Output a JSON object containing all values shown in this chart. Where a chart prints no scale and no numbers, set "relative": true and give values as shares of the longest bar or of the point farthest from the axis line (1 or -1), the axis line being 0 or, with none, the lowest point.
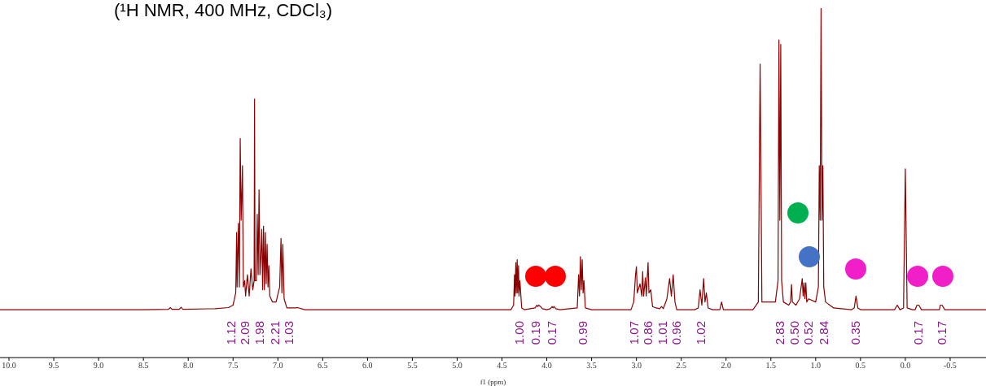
{
  "chart_data": {
    "type": "line",
    "title": "(¹H NMR, 400 MHz, CDCl₃)",
    "xlabel": "f1 (ppm)",
    "relative": true,
    "color": "#8b0000",
    "line_style": "solid",
    "xlim": [
      10.1,
      -0.9
    ],
    "xticks": [
      {
        "value": 10,
        "label": "10.0"
      },
      9.5,
      {
        "value": 9,
        "label": "9.0"
      },
      8.5,
      {
        "value": 8,
        "label": "8.0"
      },
      7.5,
      {
        "value": 7,
        "label": "7.0"
      },
      6.5,
      {
        "value": 6,
        "label": "6.0"
      },
      5.5,
      {
        "value": 5,
        "label": "5.0"
      },
      4.5,
      {
        "value": 4,
        "label": "4.0"
      },
      3.5,
      {
        "value": 3,
        "label": "3.0"
      },
      2.5,
      {
        "value": 2,
        "label": "2.0"
      },
      1.5,
      {
        "value": 1,
        "label": "1.0"
      },
      0.5,
      {
        "value": 0,
        "label": "0.0"
      },
      -0.5
    ],
    "x": [
      10.1,
      8.5,
      8.22,
      8.2,
      8.18,
      8.1,
      8.08,
      8.06,
      7.7,
      7.55,
      7.5,
      7.47,
      7.46,
      7.455,
      7.44,
      7.43,
      7.42,
      7.41,
      7.4,
      7.395,
      7.385,
      7.37,
      7.36,
      7.34,
      7.32,
      7.3,
      7.28,
      7.265,
      7.26,
      7.255,
      7.24,
      7.23,
      7.22,
      7.21,
      7.2,
      7.19,
      7.18,
      7.17,
      7.16,
      7.15,
      7.14,
      7.13,
      7.12,
      7.11,
      7.1,
      7.09,
      7.06,
      7.02,
      6.98,
      6.965,
      6.955,
      6.945,
      6.93,
      6.9,
      6.8,
      6.78,
      6.7,
      4.4,
      4.37,
      4.36,
      4.355,
      4.345,
      4.34,
      4.33,
      4.325,
      4.315,
      4.31,
      4.3,
      4.28,
      4.25,
      4.13,
      4.11,
      4.1,
      4.09,
      4.07,
      4.05,
      4.0,
      3.96,
      3.94,
      3.93,
      3.92,
      3.9,
      3.85,
      3.66,
      3.645,
      3.635,
      3.625,
      3.615,
      3.605,
      3.595,
      3.585,
      3.57,
      3.5,
      3.06,
      3.03,
      3.01,
      3.0,
      2.99,
      2.96,
      2.94,
      2.93,
      2.92,
      2.9,
      2.89,
      2.87,
      2.86,
      2.84,
      2.82,
      2.78,
      2.74,
      2.72,
      2.7,
      2.66,
      2.63,
      2.61,
      2.59,
      2.57,
      2.55,
      2.35,
      2.31,
      2.29,
      2.27,
      2.25,
      2.235,
      2.22,
      2.2,
      2.15,
      2.07,
      2.05,
      2.03,
      1.7,
      1.64,
      1.62,
      1.6,
      1.45,
      1.42,
      1.41,
      1.4,
      1.39,
      1.38,
      1.36,
      1.3,
      1.28,
      1.27,
      1.26,
      1.22,
      1.18,
      1.15,
      1.14,
      1.13,
      1.12,
      1.11,
      1.1,
      1.08,
      1.0,
      0.97,
      0.96,
      0.95,
      0.94,
      0.93,
      0.92,
      0.91,
      0.89,
      0.8,
      0.6,
      0.57,
      0.55,
      0.53,
      0.5,
      0.12,
      0.09,
      0.06,
      0.02,
      0.0,
      -0.02,
      -0.08,
      -0.11,
      -0.13,
      -0.15,
      -0.18,
      -0.35,
      -0.38,
      -0.39,
      -0.41,
      -0.44,
      -0.9
    ],
    "values": [
      0.137,
      0.137,
      0.138,
      0.143,
      0.138,
      0.138,
      0.144,
      0.138,
      0.14,
      0.143,
      0.15,
      0.185,
      0.358,
      0.202,
      0.384,
      0.202,
      0.627,
      0.393,
      0.488,
      0.549,
      0.202,
      0.22,
      0.176,
      0.237,
      0.176,
      0.254,
      0.194,
      0.22,
      0.74,
      0.22,
      0.22,
      0.41,
      0.237,
      0.48,
      0.237,
      0.289,
      0.367,
      0.194,
      0.376,
      0.194,
      0.358,
      0.211,
      0.324,
      0.202,
      0.263,
      0.176,
      0.159,
      0.159,
      0.202,
      0.341,
      0.185,
      0.324,
      0.168,
      0.142,
      0.142,
      0.143,
      0.137,
      0.137,
      0.15,
      0.237,
      0.176,
      0.272,
      0.185,
      0.28,
      0.185,
      0.263,
      0.176,
      0.22,
      0.142,
      0.137,
      0.142,
      0.15,
      0.146,
      0.15,
      0.146,
      0.14,
      0.137,
      0.14,
      0.146,
      0.142,
      0.146,
      0.14,
      0.137,
      0.142,
      0.237,
      0.176,
      0.289,
      0.194,
      0.28,
      0.185,
      0.22,
      0.142,
      0.137,
      0.137,
      0.159,
      0.237,
      0.26,
      0.185,
      0.211,
      0.176,
      0.246,
      0.176,
      0.228,
      0.176,
      0.272,
      0.185,
      0.194,
      0.146,
      0.142,
      0.14,
      0.146,
      0.14,
      0.168,
      0.226,
      0.176,
      0.237,
      0.159,
      0.137,
      0.137,
      0.142,
      0.194,
      0.15,
      0.226,
      0.159,
      0.185,
      0.142,
      0.137,
      0.137,
      0.159,
      0.137,
      0.137,
      0.159,
      0.84,
      0.159,
      0.159,
      0.22,
      0.909,
      0.393,
      0.896,
      0.22,
      0.159,
      0.15,
      0.159,
      0.209,
      0.159,
      0.15,
      0.168,
      0.226,
      0.176,
      0.214,
      0.168,
      0.214,
      0.159,
      0.168,
      0.159,
      0.202,
      0.549,
      0.393,
      1.0,
      0.393,
      0.549,
      0.202,
      0.159,
      0.142,
      0.137,
      0.142,
      0.176,
      0.142,
      0.137,
      0.137,
      0.15,
      0.137,
      0.142,
      0.54,
      0.142,
      0.137,
      0.137,
      0.15,
      0.15,
      0.137,
      0.137,
      0.137,
      0.15,
      0.15,
      0.137,
      0.137
    ],
    "annotations": [
      "1.12",
      "2.09",
      "1.98",
      "2.21",
      "1.03",
      "1.00",
      "0.19",
      "0.17",
      "0.99",
      "1.07",
      "0.86",
      "1.01",
      "0.96",
      "1.02",
      "2.83",
      "0.50",
      "0.52",
      "2.84",
      "0.35",
      "0.17",
      "0.17"
    ]
  }
}
